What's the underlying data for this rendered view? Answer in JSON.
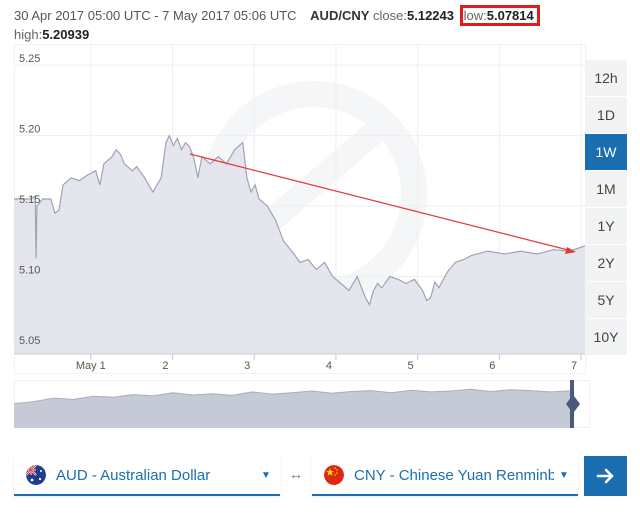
{
  "header": {
    "range": "30 Apr 2017 05:00 UTC - 7 May 2017 05:06 UTC",
    "pair": "AUD/CNY",
    "close_label": "close:",
    "close_value": "5.12243",
    "low_label": "low:",
    "low_value": "5.07814",
    "high_label": "high:",
    "high_value": "5.20939"
  },
  "range_buttons": [
    {
      "label": "12h",
      "active": false
    },
    {
      "label": "1D",
      "active": false
    },
    {
      "label": "1W",
      "active": true
    },
    {
      "label": "1M",
      "active": false
    },
    {
      "label": "1Y",
      "active": false
    },
    {
      "label": "2Y",
      "active": false
    },
    {
      "label": "5Y",
      "active": false
    },
    {
      "label": "10Y",
      "active": false
    }
  ],
  "converter": {
    "from_label": "AUD - Australian Dollar",
    "to_label": "CNY - Chinese Yuan Renminbi",
    "swap_symbol": "↔"
  },
  "colors": {
    "accent": "#1b6fb0",
    "area_fill": "#dfe1ea",
    "line": "#9fa3b7",
    "trend_arrow": "#e53935",
    "highlight_box": "#e01b1b"
  },
  "icons": {
    "from_flag": "australia-flag-icon",
    "to_flag": "china-flag-icon",
    "caret": "caret-down-icon",
    "swap": "swap-arrows-icon",
    "go": "arrow-right-icon",
    "watermark": "xe-logo-watermark"
  },
  "chart_data": {
    "type": "area",
    "title": "",
    "xlabel": "",
    "ylabel": "",
    "x_range": [
      0,
      7
    ],
    "ylim": [
      5.045,
      5.265
    ],
    "y_ticks": [
      5.05,
      5.1,
      5.15,
      5.2,
      5.25
    ],
    "y_tick_labels": [
      "5.05",
      "5.10",
      "5.15",
      "5.20",
      "5.25"
    ],
    "x_ticks": [
      0.94,
      1.94,
      2.94,
      3.94,
      4.94,
      5.94,
      6.94
    ],
    "x_tick_labels": [
      "May 1",
      "2",
      "3",
      "4",
      "5",
      "6",
      "7"
    ],
    "grid": true,
    "series": [
      {
        "x": [
          0,
          0.1,
          0.2,
          0.26,
          0.27,
          0.28,
          0.35,
          0.45,
          0.5,
          0.55,
          0.6,
          0.7,
          0.8,
          0.9,
          1.0,
          1.05,
          1.1,
          1.2,
          1.25,
          1.3,
          1.35,
          1.45,
          1.5,
          1.6,
          1.7,
          1.8,
          1.86,
          1.9,
          1.95,
          2.0,
          2.05,
          2.1,
          2.15,
          2.2,
          2.25,
          2.3,
          2.4,
          2.5,
          2.6,
          2.7,
          2.8,
          2.85,
          2.9,
          2.95,
          3.0,
          3.1,
          3.2,
          3.3,
          3.4,
          3.5,
          3.6,
          3.7,
          3.8,
          3.9,
          4.0,
          4.1,
          4.2,
          4.3,
          4.35,
          4.4,
          4.45,
          4.5,
          4.6,
          4.7,
          4.8,
          4.9,
          5.0,
          5.05,
          5.1,
          5.15,
          5.2,
          5.3,
          5.4,
          5.5,
          5.6,
          5.8,
          6.0,
          6.2,
          6.4,
          6.6,
          6.8,
          7.0
        ],
        "y": [
          5.155,
          5.155,
          5.155,
          5.157,
          5.113,
          5.15,
          5.155,
          5.155,
          5.145,
          5.147,
          5.165,
          5.17,
          5.168,
          5.172,
          5.175,
          5.165,
          5.18,
          5.185,
          5.19,
          5.187,
          5.18,
          5.175,
          5.178,
          5.17,
          5.16,
          5.17,
          5.195,
          5.2,
          5.193,
          5.198,
          5.19,
          5.195,
          5.192,
          5.184,
          5.17,
          5.185,
          5.18,
          5.185,
          5.18,
          5.19,
          5.195,
          5.17,
          5.16,
          5.165,
          5.155,
          5.15,
          5.14,
          5.125,
          5.118,
          5.11,
          5.112,
          5.105,
          5.11,
          5.1,
          5.095,
          5.09,
          5.1,
          5.085,
          5.08,
          5.09,
          5.095,
          5.092,
          5.1,
          5.098,
          5.095,
          5.098,
          5.09,
          5.083,
          5.085,
          5.096,
          5.092,
          5.103,
          5.11,
          5.112,
          5.115,
          5.118,
          5.116,
          5.118,
          5.116,
          5.119,
          5.118,
          5.122
        ]
      }
    ],
    "navigator_series": {
      "x": [
        0,
        0.25,
        0.5,
        0.75,
        1.0,
        1.25,
        1.5,
        1.75,
        2.0,
        2.25,
        2.5,
        2.75,
        3.0,
        3.25,
        3.5,
        3.75,
        4.0,
        4.25,
        4.5,
        4.75,
        5.0,
        5.25,
        5.5,
        5.75,
        6.0,
        6.25,
        6.5,
        6.75,
        7.0
      ],
      "y": [
        0.55,
        0.6,
        0.68,
        0.65,
        0.72,
        0.7,
        0.76,
        0.73,
        0.8,
        0.75,
        0.78,
        0.74,
        0.82,
        0.77,
        0.8,
        0.84,
        0.79,
        0.83,
        0.85,
        0.8,
        0.86,
        0.82,
        0.84,
        0.88,
        0.83,
        0.87,
        0.85,
        0.82,
        0.84
      ]
    }
  }
}
